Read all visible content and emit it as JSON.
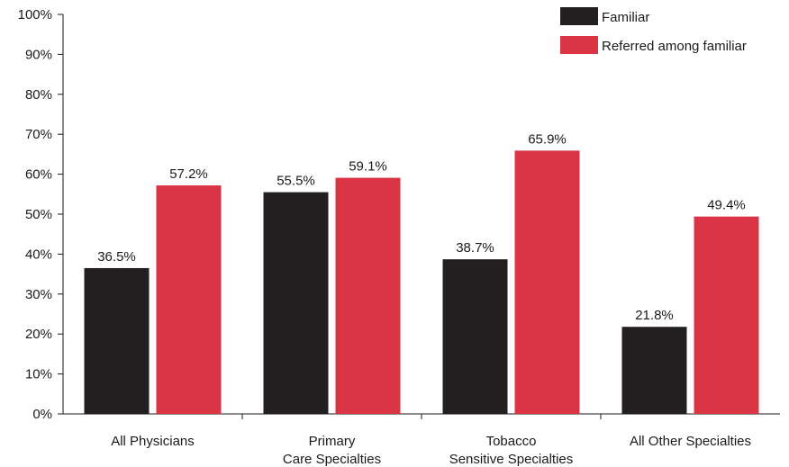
{
  "chart_data": {
    "type": "bar",
    "title": "",
    "xlabel": "",
    "ylabel": "",
    "ylim": [
      0,
      100
    ],
    "y_ticks": [
      "0%",
      "10%",
      "20%",
      "30%",
      "40%",
      "50%",
      "60%",
      "70%",
      "80%",
      "90%",
      "100%"
    ],
    "categories": [
      [
        "All Physicians"
      ],
      [
        "Primary",
        "Care Specialties"
      ],
      [
        "Tobacco",
        "Sensitive Specialties"
      ],
      [
        "All Other Specialties"
      ]
    ],
    "series": [
      {
        "name": "Familiar",
        "color": "#231f20",
        "values": [
          36.5,
          55.5,
          38.7,
          21.8
        ],
        "labels": [
          "36.5%",
          "55.5%",
          "38.7%",
          "21.8%"
        ]
      },
      {
        "name": "Referred among familiar",
        "color": "#d93545",
        "values": [
          57.2,
          59.1,
          65.9,
          49.4
        ],
        "labels": [
          "57.2%",
          "59.1%",
          "65.9%",
          "49.4%"
        ]
      }
    ],
    "grid": false,
    "legend": "top-right"
  }
}
